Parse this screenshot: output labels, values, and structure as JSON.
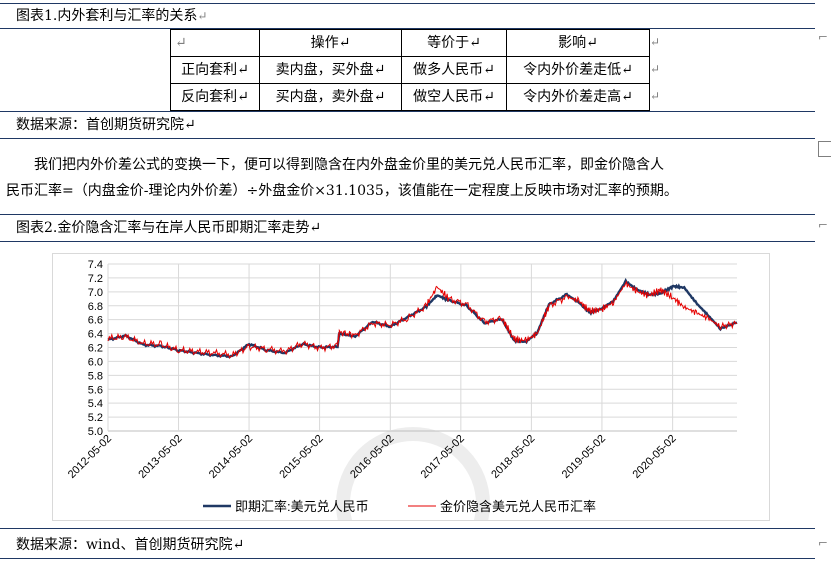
{
  "section1": {
    "title": "图表1.内外套利与汇率的关系",
    "para_mark": "↵",
    "table": {
      "header": [
        "↵",
        "操作↵",
        "等价于↵",
        "影响↵"
      ],
      "rows": [
        [
          "正向套利↵",
          "卖内盘，买外盘↵",
          "做多人民币↵",
          "令内外价差走低↵"
        ],
        [
          "反向套利↵",
          "买内盘，卖外盘↵",
          "做空人民币↵",
          "令内外价差走高↵"
        ]
      ],
      "row_end_mark": "↵"
    },
    "source": "数据来源：首创期货研究院↵"
  },
  "paragraph": {
    "line1": "　　我们把内外价差公式的变换一下，便可以得到隐含在内外盘金价里的美元兑人民币汇率，即金价隐含人",
    "line2": "民币汇率=（内盘金价-理论内外价差）÷外盘金价×31.1035，该值能在一定程度上反映市场对汇率的预期。"
  },
  "section2": {
    "title": "图表2.金价隐含汇率与在岸人民币即期汇率走势↵",
    "source": "数据来源：wind、首创期货研究院↵"
  },
  "chart_data": {
    "type": "line",
    "title": "",
    "xlabel": "",
    "ylabel": "",
    "ylim": [
      5.0,
      7.4
    ],
    "yticks": [
      "7.4",
      "7.2",
      "7.0",
      "6.8",
      "6.6",
      "6.4",
      "6.2",
      "6.0",
      "5.8",
      "5.6",
      "5.4",
      "5.2",
      "5.0"
    ],
    "xticks": [
      "2012-05-02",
      "2013-05-02",
      "2014-05-02",
      "2015-05-02",
      "2016-05-02",
      "2017-05-02",
      "2018-05-02",
      "2019-05-02",
      "2020-05-02"
    ],
    "x_range": [
      "2012-05-02",
      "2021-03-31"
    ],
    "grid": true,
    "legend_position": "bottom",
    "series": [
      {
        "name": "即期汇率:美元兑人民币",
        "color": "#1f3864",
        "x": [
          "2012-05-02",
          "2012-08-01",
          "2012-11-01",
          "2013-02-01",
          "2013-05-02",
          "2013-08-01",
          "2013-11-01",
          "2014-02-03",
          "2014-05-02",
          "2014-08-01",
          "2014-11-03",
          "2015-02-02",
          "2015-05-04",
          "2015-08-03",
          "2015-08-12",
          "2015-11-02",
          "2016-02-01",
          "2016-05-02",
          "2016-08-01",
          "2016-11-01",
          "2016-12-30",
          "2017-03-01",
          "2017-06-01",
          "2017-09-01",
          "2017-12-01",
          "2018-02-01",
          "2018-04-02",
          "2018-06-01",
          "2018-08-01",
          "2018-11-01",
          "2019-01-02",
          "2019-03-01",
          "2019-05-02",
          "2019-07-01",
          "2019-09-02",
          "2019-11-01",
          "2020-01-02",
          "2020-03-02",
          "2020-05-06",
          "2020-07-01",
          "2020-09-01",
          "2020-11-02",
          "2021-01-04",
          "2021-03-31"
        ],
        "values": [
          6.31,
          6.37,
          6.24,
          6.22,
          6.16,
          6.12,
          6.09,
          6.07,
          6.25,
          6.16,
          6.12,
          6.25,
          6.2,
          6.21,
          6.4,
          6.36,
          6.57,
          6.5,
          6.64,
          6.78,
          6.95,
          6.88,
          6.8,
          6.55,
          6.61,
          6.3,
          6.28,
          6.41,
          6.82,
          6.96,
          6.85,
          6.7,
          6.76,
          6.87,
          7.15,
          7.03,
          6.96,
          6.98,
          7.08,
          7.06,
          6.84,
          6.66,
          6.47,
          6.56
        ]
      },
      {
        "name": "金价隐含美元兑人民币汇率",
        "color": "#e60000",
        "x": [
          "2012-05-02",
          "2012-08-01",
          "2012-11-01",
          "2013-02-01",
          "2013-05-02",
          "2013-08-01",
          "2013-11-01",
          "2014-02-03",
          "2014-05-02",
          "2014-08-01",
          "2014-11-03",
          "2015-02-02",
          "2015-05-04",
          "2015-08-03",
          "2015-08-12",
          "2015-11-02",
          "2016-02-01",
          "2016-05-02",
          "2016-08-01",
          "2016-11-01",
          "2016-12-30",
          "2017-03-01",
          "2017-06-01",
          "2017-09-01",
          "2017-12-01",
          "2018-02-01",
          "2018-04-02",
          "2018-06-01",
          "2018-08-01",
          "2018-11-01",
          "2019-01-02",
          "2019-03-01",
          "2019-05-02",
          "2019-07-01",
          "2019-09-02",
          "2019-11-01",
          "2020-01-02",
          "2020-03-02",
          "2020-05-06",
          "2020-07-01",
          "2020-09-01",
          "2020-11-02",
          "2021-01-04",
          "2021-03-31"
        ],
        "values": [
          6.33,
          6.35,
          6.26,
          6.24,
          6.16,
          6.14,
          6.12,
          6.09,
          6.21,
          6.18,
          6.14,
          6.26,
          6.19,
          6.23,
          6.42,
          6.38,
          6.55,
          6.52,
          6.62,
          6.79,
          7.07,
          6.9,
          6.82,
          6.57,
          6.62,
          6.32,
          6.3,
          6.4,
          6.8,
          6.93,
          6.87,
          6.72,
          6.75,
          6.85,
          7.12,
          7.0,
          6.95,
          7.03,
          6.91,
          6.78,
          6.7,
          6.62,
          6.5,
          6.55
        ]
      }
    ]
  }
}
